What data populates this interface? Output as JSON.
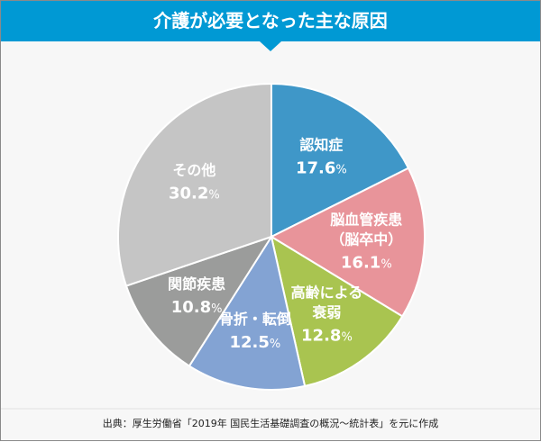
{
  "chart_data": {
    "type": "pie",
    "title": "介護が必要となった主な原因",
    "start": "top",
    "direction": "clockwise",
    "unit": "%",
    "slices": [
      {
        "label": [
          "認知症"
        ],
        "value": 17.6,
        "color": "#3f97c8"
      },
      {
        "label": [
          "脳血管疾患",
          "（脳卒中）"
        ],
        "value": 16.1,
        "color": "#e8949a"
      },
      {
        "label": [
          "高齢による",
          "衰弱"
        ],
        "value": 12.8,
        "color": "#a9c450"
      },
      {
        "label": [
          "骨折・転倒"
        ],
        "value": 12.5,
        "color": "#83a3d3"
      },
      {
        "label": [
          "関節疾患"
        ],
        "value": 10.8,
        "color": "#9b9c9b"
      },
      {
        "label": [
          "その他"
        ],
        "value": 30.2,
        "color": "#c5c5c5"
      }
    ]
  },
  "source": "出典：厚生労働省「2019年 国民生活基礎調査の概況～統計表」を元に作成",
  "colors": {
    "header": "#0099d4",
    "background": "#f7f7f7"
  }
}
